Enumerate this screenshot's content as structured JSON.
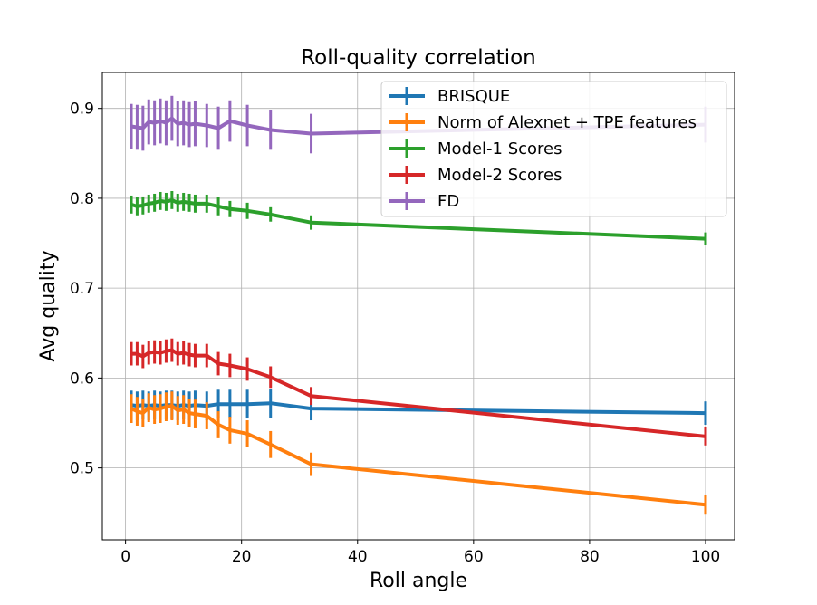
{
  "chart_data": {
    "type": "line",
    "title": "Roll-quality correlation",
    "xlabel": "Roll angle",
    "ylabel": "Avg quality",
    "xlim": [
      -4,
      105
    ],
    "ylim": [
      0.42,
      0.94
    ],
    "grid": true,
    "legend_position": "top-right",
    "x_ticks": [
      0,
      20,
      40,
      60,
      80,
      100
    ],
    "y_ticks": [
      0.5,
      0.6,
      0.7,
      0.8,
      0.9
    ],
    "x_tick_labels": [
      "0",
      "20",
      "40",
      "60",
      "80",
      "100"
    ],
    "y_tick_labels": [
      "0.5",
      "0.6",
      "0.7",
      "0.8",
      "0.9"
    ],
    "x": [
      1,
      2,
      3,
      4,
      5,
      6,
      7,
      8,
      9,
      10,
      11,
      12,
      14,
      16,
      18,
      21,
      25,
      32,
      100
    ],
    "series": [
      {
        "name": "BRISQUE",
        "color": "#1f77b4",
        "values": [
          0.57,
          0.569,
          0.57,
          0.569,
          0.57,
          0.569,
          0.57,
          0.57,
          0.569,
          0.57,
          0.569,
          0.57,
          0.569,
          0.571,
          0.571,
          0.571,
          0.572,
          0.566,
          0.561
        ],
        "errors": [
          0.016,
          0.016,
          0.016,
          0.016,
          0.016,
          0.016,
          0.016,
          0.016,
          0.016,
          0.016,
          0.016,
          0.016,
          0.016,
          0.016,
          0.016,
          0.016,
          0.016,
          0.013,
          0.013
        ]
      },
      {
        "name": "Norm of Alexnet + TPE features",
        "color": "#ff7f0e",
        "values": [
          0.566,
          0.563,
          0.561,
          0.567,
          0.565,
          0.566,
          0.568,
          0.569,
          0.564,
          0.565,
          0.561,
          0.56,
          0.558,
          0.548,
          0.542,
          0.538,
          0.526,
          0.504,
          0.459
        ],
        "errors": [
          0.016,
          0.016,
          0.016,
          0.016,
          0.016,
          0.016,
          0.016,
          0.016,
          0.016,
          0.016,
          0.016,
          0.016,
          0.015,
          0.015,
          0.015,
          0.015,
          0.015,
          0.013,
          0.011
        ]
      },
      {
        "name": "Model-1 Scores",
        "color": "#2ca02c",
        "values": [
          0.793,
          0.791,
          0.792,
          0.794,
          0.795,
          0.797,
          0.796,
          0.798,
          0.795,
          0.796,
          0.795,
          0.794,
          0.794,
          0.791,
          0.788,
          0.786,
          0.782,
          0.773,
          0.755
        ],
        "errors": [
          0.01,
          0.01,
          0.01,
          0.01,
          0.01,
          0.01,
          0.01,
          0.01,
          0.01,
          0.01,
          0.01,
          0.01,
          0.01,
          0.01,
          0.009,
          0.009,
          0.008,
          0.008,
          0.007
        ]
      },
      {
        "name": "Model-2 Scores",
        "color": "#d62728",
        "values": [
          0.627,
          0.627,
          0.624,
          0.628,
          0.629,
          0.628,
          0.63,
          0.631,
          0.627,
          0.628,
          0.626,
          0.625,
          0.625,
          0.616,
          0.614,
          0.61,
          0.601,
          0.58,
          0.535
        ],
        "errors": [
          0.013,
          0.013,
          0.013,
          0.013,
          0.013,
          0.013,
          0.013,
          0.013,
          0.013,
          0.013,
          0.013,
          0.013,
          0.013,
          0.013,
          0.013,
          0.013,
          0.012,
          0.01,
          0.01
        ]
      },
      {
        "name": "FD",
        "color": "#9467bd",
        "values": [
          0.88,
          0.879,
          0.878,
          0.885,
          0.884,
          0.886,
          0.884,
          0.889,
          0.883,
          0.884,
          0.882,
          0.883,
          0.881,
          0.878,
          0.886,
          0.881,
          0.876,
          0.872,
          0.882
        ],
        "errors": [
          0.025,
          0.025,
          0.025,
          0.025,
          0.025,
          0.025,
          0.025,
          0.025,
          0.025,
          0.025,
          0.025,
          0.025,
          0.024,
          0.024,
          0.023,
          0.023,
          0.022,
          0.022,
          0.02
        ]
      }
    ]
  }
}
